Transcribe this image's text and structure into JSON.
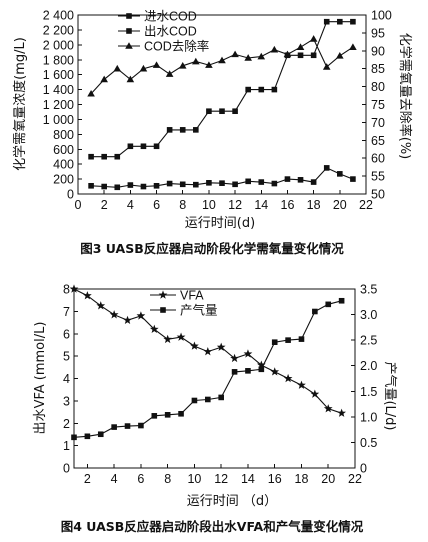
{
  "chart_data": [
    {
      "type": "line",
      "caption": "图3   UASB反应器启动阶段化学需氧量变化情况",
      "xlabel": "运行时间(d)",
      "ylabel": "化学需氧量浓度(mg/L)",
      "y2label": "化学需氧量去除率(%)",
      "xlim": [
        0,
        22
      ],
      "ylim": [
        0,
        2400
      ],
      "y2lim": [
        50,
        100
      ],
      "xticks": [
        0,
        2,
        4,
        6,
        8,
        10,
        12,
        14,
        16,
        18,
        20,
        22
      ],
      "yticks": [
        0,
        200,
        400,
        600,
        800,
        1000,
        1200,
        1400,
        1600,
        1800,
        2000,
        2200,
        2400
      ],
      "yticklabels": [
        "0",
        "200",
        "400",
        "600",
        "800",
        "1 000",
        "1 200",
        "1 400",
        "1 600",
        "1 800",
        "2 000",
        "2 200",
        "2 400"
      ],
      "y2ticks": [
        50,
        55,
        60,
        65,
        70,
        75,
        80,
        85,
        90,
        95,
        100
      ],
      "legend_position": "top-center",
      "series": [
        {
          "name": "进水COD",
          "axis": "left",
          "marker": "square",
          "x": [
            1,
            2,
            3,
            4,
            5,
            6,
            7,
            8,
            9,
            10,
            11,
            12,
            13,
            14,
            15,
            16,
            17,
            18,
            19,
            20,
            21
          ],
          "y": [
            500,
            500,
            500,
            640,
            640,
            640,
            860,
            860,
            860,
            1110,
            1110,
            1110,
            1400,
            1400,
            1400,
            1860,
            1860,
            1860,
            2310,
            2310,
            2310
          ]
        },
        {
          "name": "出水COD",
          "axis": "left",
          "marker": "square",
          "x": [
            1,
            2,
            3,
            4,
            5,
            6,
            7,
            8,
            9,
            10,
            11,
            12,
            13,
            14,
            15,
            16,
            17,
            18,
            19,
            20,
            21
          ],
          "y": [
            110,
            100,
            90,
            120,
            100,
            110,
            140,
            130,
            125,
            150,
            145,
            130,
            170,
            160,
            140,
            200,
            190,
            160,
            350,
            270,
            200
          ]
        },
        {
          "name": "COD去除率",
          "axis": "right",
          "marker": "triangle",
          "x": [
            1,
            2,
            3,
            4,
            5,
            6,
            7,
            8,
            9,
            10,
            11,
            12,
            13,
            14,
            15,
            16,
            17,
            18,
            19,
            20,
            21
          ],
          "y": [
            78,
            82,
            85,
            82,
            85,
            86,
            83.5,
            85.8,
            87,
            86,
            87.3,
            89,
            88,
            88.4,
            90.3,
            89,
            91,
            93.3,
            85.5,
            88.6,
            91
          ]
        }
      ]
    },
    {
      "type": "line",
      "caption": "图4    UASB反应器启动阶段出水VFA和产气量变化情况",
      "xlabel": "运行时间 （d）",
      "ylabel": "出水VFA (mmol/L)",
      "y2label": "产气量(L/d)",
      "xlim": [
        1,
        22
      ],
      "ylim": [
        0,
        8
      ],
      "y2lim": [
        0,
        3.5
      ],
      "xticks": [
        2,
        4,
        6,
        8,
        10,
        12,
        14,
        16,
        18,
        20,
        22
      ],
      "yticks": [
        0,
        1,
        2,
        3,
        4,
        5,
        6,
        7,
        8
      ],
      "y2ticks": [
        0,
        0.5,
        1.0,
        1.5,
        2.0,
        2.5,
        3.0,
        3.5
      ],
      "y2ticklabels": [
        "0",
        "0.5",
        "1.0",
        "1.5",
        "2.0",
        "2.5",
        "3.0",
        "3.5"
      ],
      "legend_position": "top-center",
      "series": [
        {
          "name": "VFA",
          "axis": "left",
          "marker": "star",
          "x": [
            1,
            2,
            3,
            4,
            5,
            6,
            7,
            8,
            9,
            10,
            11,
            12,
            13,
            14,
            15,
            16,
            17,
            18,
            19,
            20,
            21
          ],
          "y": [
            8.0,
            7.7,
            7.25,
            6.85,
            6.6,
            6.8,
            6.2,
            5.75,
            5.85,
            5.45,
            5.2,
            5.4,
            4.9,
            5.1,
            4.6,
            4.3,
            4.0,
            3.7,
            3.3,
            2.65,
            2.45
          ]
        },
        {
          "name": "产气量",
          "axis": "right",
          "marker": "square",
          "x": [
            1,
            2,
            3,
            4,
            5,
            6,
            7,
            8,
            9,
            10,
            11,
            12,
            13,
            14,
            15,
            16,
            17,
            18,
            19,
            20,
            21
          ],
          "y": [
            0.6,
            0.62,
            0.66,
            0.8,
            0.82,
            0.83,
            1.02,
            1.04,
            1.06,
            1.32,
            1.34,
            1.38,
            1.88,
            1.9,
            1.93,
            2.46,
            2.5,
            2.52,
            3.06,
            3.2,
            3.27
          ]
        }
      ]
    }
  ]
}
